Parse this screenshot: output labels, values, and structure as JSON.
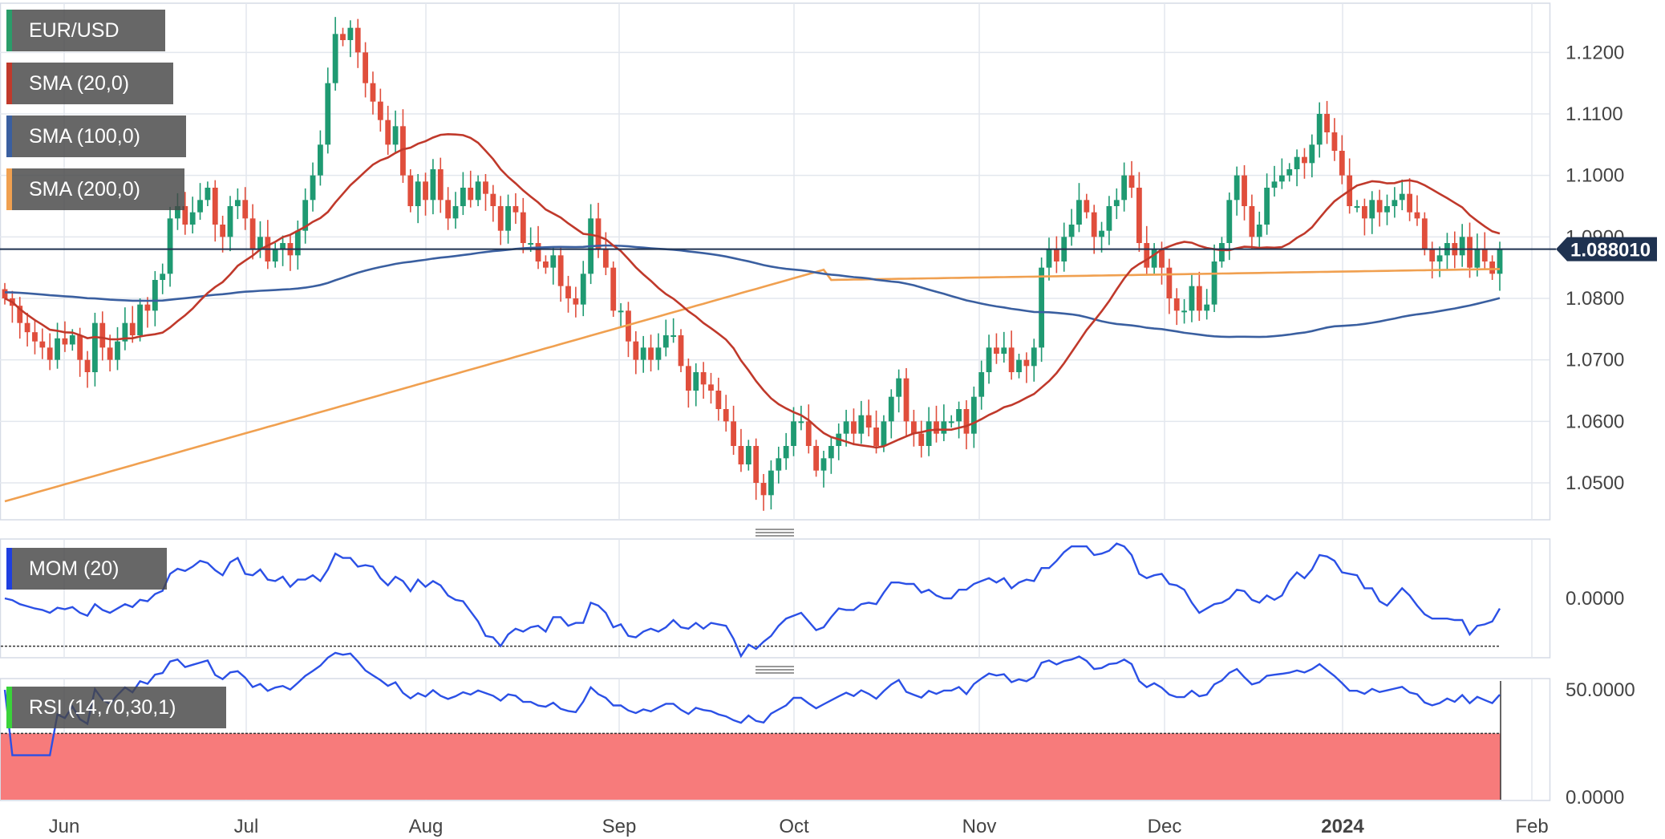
{
  "chart_data": {
    "type": "candlestick",
    "symbol": "EUR/USD",
    "indicators": [
      {
        "label": "SMA (20,0)",
        "color": "#c0392b"
      },
      {
        "label": "SMA (100,0)",
        "color": "#3a5fa0"
      },
      {
        "label": "SMA (200,0)",
        "color": "#f0a050"
      }
    ],
    "last_price": {
      "value": 1.088,
      "label": "1.088010"
    },
    "price_axis": {
      "ylim": [
        1.044,
        1.128
      ],
      "ticks": [
        "1.1200",
        "1.1100",
        "1.1000",
        "1.0900",
        "1.0800",
        "1.0700",
        "1.0600",
        "1.0500"
      ]
    },
    "x_axis": {
      "labels": [
        "Jun",
        "Jul",
        "Aug",
        "Sep",
        "Oct",
        "Nov",
        "Dec",
        "2024",
        "Feb"
      ]
    },
    "candle_closes": [
      1.08,
      1.0788,
      1.076,
      1.0745,
      1.073,
      1.072,
      1.07,
      1.0735,
      1.0725,
      1.074,
      1.07,
      1.068,
      1.076,
      1.072,
      1.07,
      1.073,
      1.076,
      1.074,
      1.079,
      1.078,
      1.083,
      1.084,
      1.093,
      1.095,
      1.092,
      1.094,
      1.096,
      1.098,
      1.092,
      1.09,
      1.095,
      1.096,
      1.093,
      1.088,
      1.09,
      1.086,
      1.088,
      1.089,
      1.087,
      1.091,
      1.096,
      1.1,
      1.105,
      1.115,
      1.123,
      1.122,
      1.124,
      1.12,
      1.115,
      1.112,
      1.109,
      1.105,
      1.108,
      1.1,
      1.095,
      1.099,
      1.096,
      1.101,
      1.096,
      1.093,
      1.095,
      1.098,
      1.096,
      1.099,
      1.097,
      1.095,
      1.091,
      1.095,
      1.094,
      1.089,
      1.089,
      1.086,
      1.085,
      1.087,
      1.082,
      1.08,
      1.079,
      1.084,
      1.093,
      1.088,
      1.085,
      1.078,
      1.078,
      1.073,
      1.07,
      1.072,
      1.07,
      1.072,
      1.074,
      1.074,
      1.069,
      1.065,
      1.068,
      1.066,
      1.065,
      1.062,
      1.06,
      1.056,
      1.053,
      1.056,
      1.05,
      1.048,
      1.052,
      1.054,
      1.056,
      1.06,
      1.06,
      1.056,
      1.052,
      1.054,
      1.056,
      1.058,
      1.06,
      1.058,
      1.061,
      1.059,
      1.056,
      1.06,
      1.064,
      1.067,
      1.06,
      1.058,
      1.056,
      1.06,
      1.058,
      1.06,
      1.06,
      1.062,
      1.058,
      1.064,
      1.068,
      1.072,
      1.071,
      1.072,
      1.068,
      1.07,
      1.069,
      1.072,
      1.085,
      1.088,
      1.086,
      1.09,
      1.092,
      1.096,
      1.094,
      1.09,
      1.091,
      1.095,
      1.096,
      1.1,
      1.098,
      1.089,
      1.085,
      1.088,
      1.085,
      1.08,
      1.078,
      1.078,
      1.082,
      1.078,
      1.079,
      1.086,
      1.089,
      1.096,
      1.1,
      1.095,
      1.09,
      1.092,
      1.098,
      1.099,
      1.1,
      1.101,
      1.103,
      1.102,
      1.105,
      1.11,
      1.107,
      1.104,
      1.1,
      1.095,
      1.095,
      1.093,
      1.096,
      1.094,
      1.095,
      1.096,
      1.097,
      1.094,
      1.093,
      1.088,
      1.086,
      1.087,
      1.089,
      1.087,
      1.09,
      1.085,
      1.088,
      1.086,
      1.084,
      1.088
    ]
  }
}
